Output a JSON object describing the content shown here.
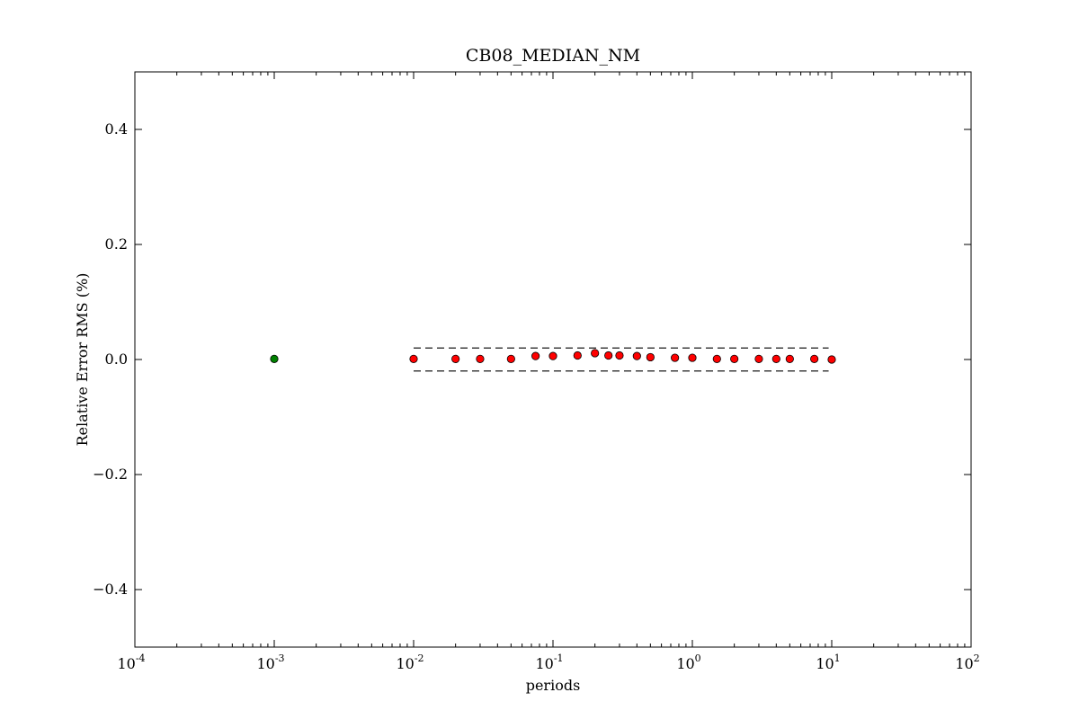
{
  "chart_data": {
    "type": "scatter",
    "title": "CB08_MEDIAN_NM",
    "xlabel": "periods",
    "ylabel": "Relative Error RMS (%)",
    "xscale": "log",
    "xlim": [
      0.0001,
      100
    ],
    "ylim": [
      -0.5,
      0.5
    ],
    "grid": false,
    "x_ticks": [
      {
        "value": 0.0001,
        "base": "10",
        "exp": "-4"
      },
      {
        "value": 0.001,
        "base": "10",
        "exp": "-3"
      },
      {
        "value": 0.01,
        "base": "10",
        "exp": "-2"
      },
      {
        "value": 0.1,
        "base": "10",
        "exp": "-1"
      },
      {
        "value": 1,
        "base": "10",
        "exp": "0"
      },
      {
        "value": 10,
        "base": "10",
        "exp": "1"
      },
      {
        "value": 100,
        "base": "10",
        "exp": "2"
      }
    ],
    "y_ticks": [
      {
        "value": 0.4,
        "label": "0.4"
      },
      {
        "value": 0.2,
        "label": "0.2"
      },
      {
        "value": 0.0,
        "label": "0.0"
      },
      {
        "value": -0.2,
        "label": "−0.2"
      },
      {
        "value": -0.4,
        "label": "−0.4"
      }
    ],
    "series": [
      {
        "color": "#008000",
        "points": [
          {
            "x": 0.001,
            "y": 0.001
          }
        ]
      },
      {
        "color": "#ff0000",
        "points": [
          {
            "x": 0.01,
            "y": 0.001
          },
          {
            "x": 0.02,
            "y": 0.001
          },
          {
            "x": 0.03,
            "y": 0.001
          },
          {
            "x": 0.05,
            "y": 0.001
          },
          {
            "x": 0.075,
            "y": 0.006
          },
          {
            "x": 0.1,
            "y": 0.006
          },
          {
            "x": 0.15,
            "y": 0.007
          },
          {
            "x": 0.2,
            "y": 0.011
          },
          {
            "x": 0.25,
            "y": 0.007
          },
          {
            "x": 0.3,
            "y": 0.007
          },
          {
            "x": 0.4,
            "y": 0.006
          },
          {
            "x": 0.5,
            "y": 0.004
          },
          {
            "x": 0.75,
            "y": 0.003
          },
          {
            "x": 1.0,
            "y": 0.003
          },
          {
            "x": 1.5,
            "y": 0.001
          },
          {
            "x": 2.0,
            "y": 0.001
          },
          {
            "x": 3.0,
            "y": 0.001
          },
          {
            "x": 4.0,
            "y": 0.001
          },
          {
            "x": 5.0,
            "y": 0.001
          },
          {
            "x": 7.5,
            "y": 0.001
          },
          {
            "x": 10.0,
            "y": 0.0
          }
        ]
      }
    ],
    "reference_lines": [
      {
        "style": "dashed",
        "color": "#000000",
        "y": 0.02,
        "x": [
          0.01,
          9.5
        ]
      },
      {
        "style": "dashed",
        "color": "#000000",
        "y": -0.02,
        "x": [
          0.01,
          9.5
        ]
      }
    ]
  }
}
